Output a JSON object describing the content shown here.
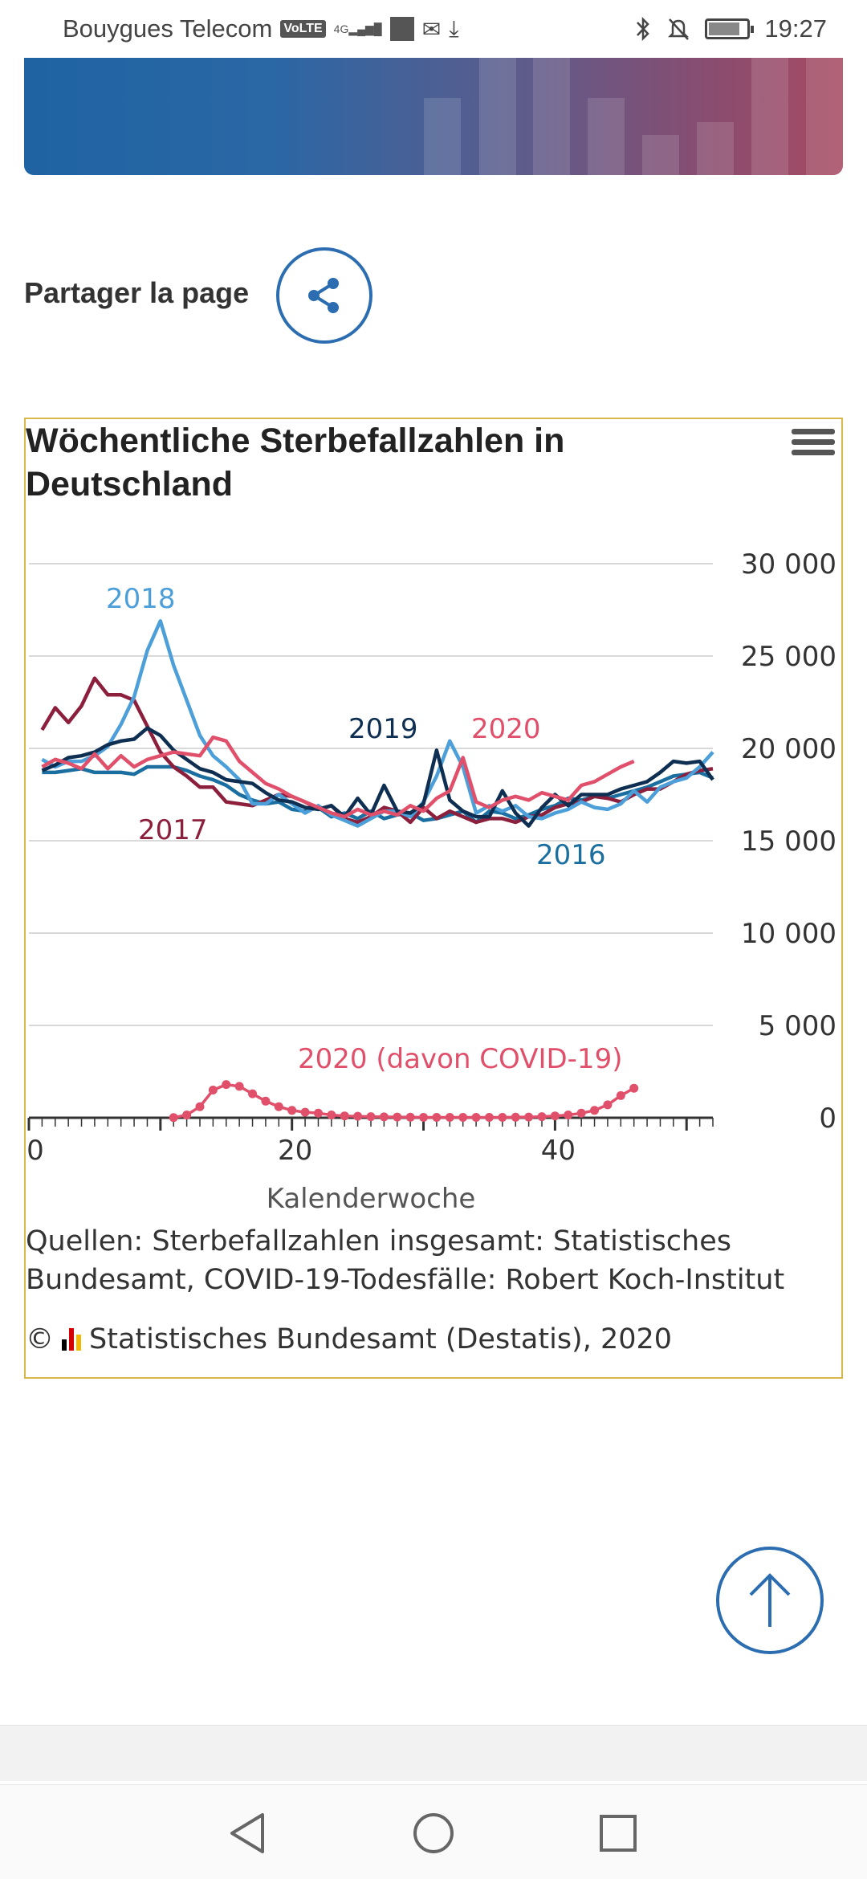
{
  "status_bar": {
    "carrier": "Bouygues Telecom",
    "volte": "VoLTE",
    "network": "4G",
    "time": "19:27"
  },
  "share": {
    "label": "Partager la page"
  },
  "chart": {
    "title": "Wöchentliche Sterbefallzahlen in Deutschland",
    "source": "Quellen: Sterbefallzahlen insgesamt: Statistisches Bundesamt, COVID-19-Todesfälle: Robert Koch-Institut",
    "copyright_symbol": "©",
    "copyright": "Statistisches Bundesamt (Destatis), 2020"
  },
  "chart_data": {
    "type": "line",
    "title": "Wöchentliche Sterbefallzahlen in Deutschland",
    "xlabel": "Kalenderwoche",
    "ylabel": "",
    "xlim": [
      0,
      52
    ],
    "ylim": [
      0,
      30000
    ],
    "x_ticks": [
      "0",
      "20",
      "40"
    ],
    "y_ticks": [
      "0",
      "5 000",
      "10 000",
      "15 000",
      "20 000",
      "25 000",
      "30 000"
    ],
    "y_tick_values": [
      0,
      5000,
      10000,
      15000,
      20000,
      25000,
      30000
    ],
    "x_tick_values": [
      0,
      20,
      40
    ],
    "grid": true,
    "legend": "inline labels",
    "series": [
      {
        "name": "2016",
        "color": "#1a6fa0",
        "x": [
          1,
          2,
          3,
          4,
          5,
          6,
          7,
          8,
          9,
          10,
          11,
          12,
          13,
          14,
          15,
          16,
          17,
          18,
          19,
          20,
          21,
          22,
          23,
          24,
          25,
          26,
          27,
          28,
          29,
          30,
          31,
          32,
          33,
          34,
          35,
          36,
          37,
          38,
          39,
          40,
          41,
          42,
          43,
          44,
          45,
          46,
          47,
          48,
          49,
          50,
          51,
          52
        ],
        "y": [
          18700,
          18700,
          18800,
          18900,
          18700,
          18700,
          18700,
          18600,
          19000,
          19000,
          19000,
          18800,
          18500,
          18300,
          18000,
          17500,
          17200,
          17000,
          17100,
          16700,
          16600,
          16800,
          16300,
          16500,
          16200,
          16600,
          16200,
          16400,
          16500,
          16100,
          16200,
          16400,
          16600,
          16000,
          16600,
          16500,
          16200,
          16400,
          16700,
          16900,
          17300,
          17200,
          17400,
          17300,
          17500,
          17700,
          17900,
          18200,
          18500,
          18600,
          18700,
          18400
        ]
      },
      {
        "name": "2017",
        "color": "#8c1f3c",
        "x": [
          1,
          2,
          3,
          4,
          5,
          6,
          7,
          8,
          9,
          10,
          11,
          12,
          13,
          14,
          15,
          16,
          17,
          18,
          19,
          20,
          21,
          22,
          23,
          24,
          25,
          26,
          27,
          28,
          29,
          30,
          31,
          32,
          33,
          34,
          35,
          36,
          37,
          38,
          39,
          40,
          41,
          42,
          43,
          44,
          45,
          46,
          47,
          48,
          49,
          50,
          51,
          52
        ],
        "y": [
          21000,
          22200,
          21400,
          22300,
          23800,
          22900,
          22900,
          22600,
          21200,
          19800,
          19000,
          18500,
          17900,
          17900,
          17100,
          17000,
          16900,
          17200,
          17500,
          17400,
          17100,
          16700,
          16900,
          16200,
          16000,
          16300,
          16800,
          16600,
          16000,
          16800,
          16200,
          16600,
          16300,
          16000,
          16200,
          16200,
          16000,
          16300,
          16400,
          16800,
          17000,
          17100,
          17400,
          17300,
          17100,
          17500,
          17800,
          17800,
          18200,
          18600,
          18800,
          18900
        ]
      },
      {
        "name": "2018",
        "color": "#4c9fd9",
        "x": [
          1,
          2,
          3,
          4,
          5,
          6,
          7,
          8,
          9,
          10,
          11,
          12,
          13,
          14,
          15,
          16,
          17,
          18,
          19,
          20,
          21,
          22,
          23,
          24,
          25,
          26,
          27,
          28,
          29,
          30,
          31,
          32,
          33,
          34,
          35,
          36,
          37,
          38,
          39,
          40,
          41,
          42,
          43,
          44,
          45,
          46,
          47,
          48,
          49,
          50,
          51,
          52
        ],
        "y": [
          19400,
          19000,
          19300,
          19300,
          19600,
          20100,
          21300,
          22800,
          25300,
          26900,
          24500,
          22600,
          20700,
          19600,
          19000,
          18300,
          17000,
          17000,
          17500,
          17000,
          16500,
          16900,
          16400,
          16100,
          15800,
          16200,
          16600,
          16600,
          16300,
          17100,
          18500,
          20400,
          19000,
          16500,
          16900,
          16600,
          16900,
          16300,
          16200,
          16500,
          16700,
          17100,
          16800,
          16700,
          17000,
          17700,
          17100,
          17900,
          18200,
          18400,
          19000,
          19800
        ]
      },
      {
        "name": "2019",
        "color": "#0e2f52",
        "x": [
          1,
          2,
          3,
          4,
          5,
          6,
          7,
          8,
          9,
          10,
          11,
          12,
          13,
          14,
          15,
          16,
          17,
          18,
          19,
          20,
          21,
          22,
          23,
          24,
          25,
          26,
          27,
          28,
          29,
          30,
          31,
          32,
          33,
          34,
          35,
          36,
          37,
          38,
          39,
          40,
          41,
          42,
          43,
          44,
          45,
          46,
          47,
          48,
          49,
          50,
          51,
          52
        ],
        "y": [
          18800,
          19100,
          19500,
          19600,
          19800,
          20200,
          20400,
          20500,
          21100,
          20700,
          19900,
          19400,
          18900,
          18700,
          18300,
          18200,
          18100,
          17600,
          17200,
          17100,
          16800,
          16700,
          16900,
          16300,
          17300,
          16400,
          18000,
          16600,
          16500,
          17000,
          19900,
          17200,
          16600,
          16300,
          16300,
          17700,
          16500,
          15800,
          16800,
          17500,
          16900,
          17500,
          17500,
          17500,
          17800,
          18000,
          18200,
          18700,
          19300,
          19200,
          19300,
          18300
        ]
      },
      {
        "name": "2020",
        "color": "#e0506b",
        "x": [
          1,
          2,
          3,
          4,
          5,
          6,
          7,
          8,
          9,
          10,
          11,
          12,
          13,
          14,
          15,
          16,
          17,
          18,
          19,
          20,
          21,
          22,
          23,
          24,
          25,
          26,
          27,
          28,
          29,
          30,
          31,
          32,
          33,
          34,
          35,
          36,
          37,
          38,
          39,
          40,
          41,
          42,
          43,
          44,
          45,
          46
        ],
        "y": [
          19000,
          19400,
          19200,
          18900,
          19700,
          18900,
          19600,
          19000,
          19400,
          19600,
          19800,
          19700,
          19600,
          20600,
          20400,
          19300,
          18700,
          18100,
          17800,
          17400,
          17100,
          16800,
          16500,
          16300,
          16700,
          16400,
          16600,
          16400,
          16900,
          16600,
          17300,
          17700,
          19500,
          17100,
          16800,
          17200,
          17400,
          17200,
          17600,
          17400,
          17200,
          18000,
          18200,
          18600,
          19000,
          19300
        ]
      },
      {
        "name": "2020 (davon COVID-19)",
        "color": "#e0506b",
        "markers": true,
        "x": [
          11,
          12,
          13,
          14,
          15,
          16,
          17,
          18,
          19,
          20,
          21,
          22,
          23,
          24,
          25,
          26,
          27,
          28,
          29,
          30,
          31,
          32,
          33,
          34,
          35,
          36,
          37,
          38,
          39,
          40,
          41,
          42,
          43,
          44,
          45,
          46
        ],
        "y": [
          10,
          150,
          600,
          1500,
          1800,
          1700,
          1300,
          900,
          600,
          400,
          300,
          250,
          150,
          100,
          80,
          60,
          50,
          40,
          30,
          20,
          20,
          20,
          20,
          20,
          20,
          20,
          30,
          40,
          60,
          100,
          150,
          250,
          400,
          700,
          1200,
          1600
        ]
      }
    ]
  },
  "navigation": {
    "back": "back",
    "home": "home",
    "recents": "recents"
  }
}
